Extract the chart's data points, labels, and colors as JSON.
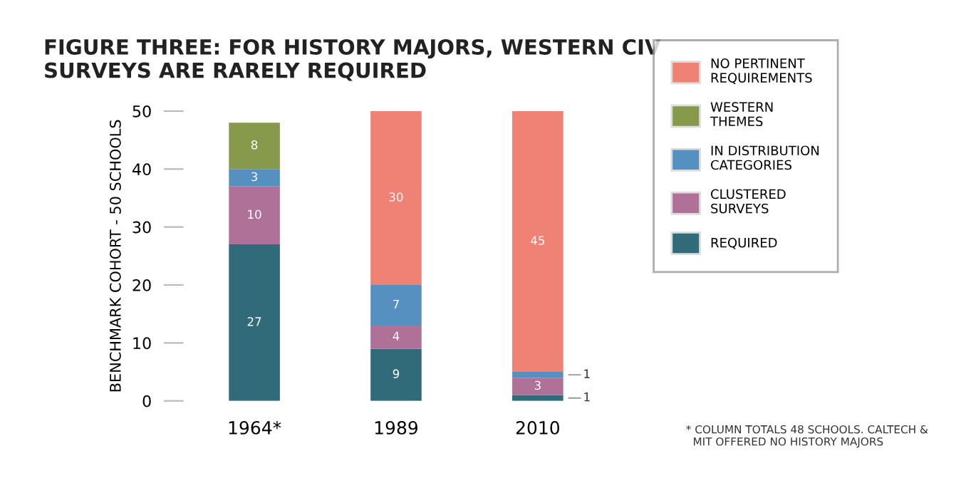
{
  "chart_data": {
    "type": "bar",
    "stacked": true,
    "title": "FIGURE THREE: FOR HISTORY MAJORS, WESTERN CIV\nSURVEYS ARE RARELY REQUIRED",
    "ylabel": "BENCHMARK COHORT - 50 SCHOOLS",
    "categories": [
      "1964*",
      "1989",
      "2010"
    ],
    "series": [
      {
        "name": "REQUIRED",
        "color": "#316a78",
        "values": [
          27,
          9,
          1
        ],
        "value_labels": [
          "27",
          "9",
          "1"
        ]
      },
      {
        "name": "CLUSTERED\nSURVEYS",
        "color": "#b07199",
        "values": [
          10,
          4,
          3
        ],
        "value_labels": [
          "10",
          "4",
          "3"
        ]
      },
      {
        "name": "IN DISTRIBUTION\nCATEGORIES",
        "color": "#5590c0",
        "values": [
          3,
          7,
          1
        ],
        "value_labels": [
          "3",
          "7",
          "1"
        ]
      },
      {
        "name": "WESTERN\nTHEMES",
        "color": "#87994a",
        "values": [
          8,
          0,
          0
        ],
        "value_labels": [
          "8",
          null,
          null
        ]
      },
      {
        "name": "NO PERTINENT\nREQUIREMENTS",
        "color": "#ef8175",
        "values": [
          0,
          30,
          45
        ],
        "value_labels": [
          null,
          "30",
          "45"
        ]
      }
    ],
    "ylim": [
      0,
      50
    ],
    "yticks": [
      0,
      10,
      20,
      30,
      40,
      50
    ],
    "legend": "right",
    "annotations": [
      "* COLUMN TOTALS 48 SCHOOLS. CALTECH &\n  MIT OFFERED NO HISTORY MAJORS"
    ]
  }
}
